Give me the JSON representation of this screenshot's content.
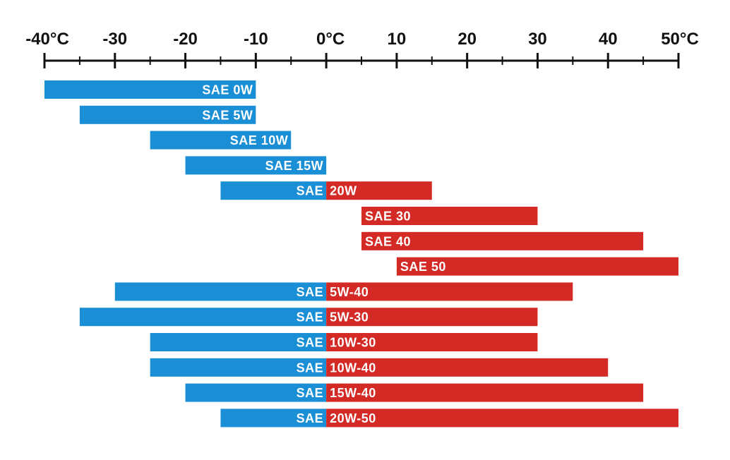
{
  "chart_data": {
    "type": "bar",
    "orientation": "horizontal-range",
    "xlim": [
      -40,
      50
    ],
    "axis_position": "top",
    "tick_labels": [
      {
        "value": -40,
        "label": "-40°C"
      },
      {
        "value": -30,
        "label": "-30"
      },
      {
        "value": -20,
        "label": "-20"
      },
      {
        "value": -10,
        "label": "-10"
      },
      {
        "value": 0,
        "label": "0°C"
      },
      {
        "value": 10,
        "label": "10"
      },
      {
        "value": 20,
        "label": "20"
      },
      {
        "value": 30,
        "label": "30"
      },
      {
        "value": 40,
        "label": "40"
      },
      {
        "value": 50,
        "label": "50°C"
      }
    ],
    "minor_tick_step": 5,
    "colors": {
      "cold": "#1a8fd6",
      "hot": "#d42a26",
      "axis": "#111111"
    },
    "bars": [
      {
        "label": "SAE 0W",
        "label_left": "SAE 0W",
        "label_right": "",
        "min": -40,
        "max": -10
      },
      {
        "label": "SAE 5W",
        "label_left": "SAE 5W",
        "label_right": "",
        "min": -35,
        "max": -10
      },
      {
        "label": "SAE 10W",
        "label_left": "SAE 10W",
        "label_right": "",
        "min": -25,
        "max": -5
      },
      {
        "label": "SAE 15W",
        "label_left": "SAE 15W",
        "label_right": "",
        "min": -20,
        "max": 0
      },
      {
        "label": "SAE 20W",
        "label_left": "SAE",
        "label_right": "20W",
        "min": -15,
        "max": 15
      },
      {
        "label": "SAE 30",
        "label_left": "",
        "label_right": "SAE 30",
        "min": 5,
        "max": 30
      },
      {
        "label": "SAE 40",
        "label_left": "",
        "label_right": "SAE 40",
        "min": 5,
        "max": 45
      },
      {
        "label": "SAE 50",
        "label_left": "",
        "label_right": "SAE 50",
        "min": 10,
        "max": 50
      },
      {
        "label": "SAE 5W-40",
        "label_left": "SAE",
        "label_right": "5W-40",
        "min": -30,
        "max": 35
      },
      {
        "label": "SAE 5W-30",
        "label_left": "SAE",
        "label_right": "5W-30",
        "min": -35,
        "max": 30
      },
      {
        "label": "SAE 10W-30",
        "label_left": "SAE",
        "label_right": "10W-30",
        "min": -25,
        "max": 30
      },
      {
        "label": "SAE 10W-40",
        "label_left": "SAE",
        "label_right": "10W-40",
        "min": -25,
        "max": 40
      },
      {
        "label": "SAE 15W-40",
        "label_left": "SAE",
        "label_right": "15W-40",
        "min": -20,
        "max": 45
      },
      {
        "label": "SAE 20W-50",
        "label_left": "SAE",
        "label_right": "20W-50",
        "min": -15,
        "max": 50
      }
    ]
  }
}
